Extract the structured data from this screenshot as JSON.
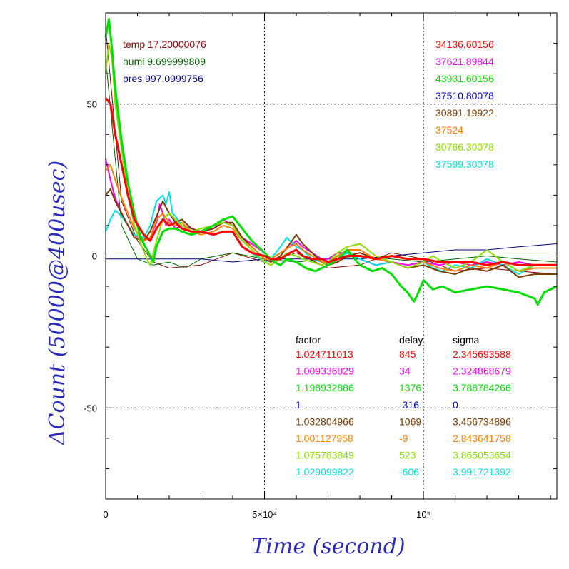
{
  "chart_data": {
    "type": "line",
    "title": "",
    "xlabel": "Time (second)",
    "ylabel": "ΔCount (50000@400usec)",
    "xlim": [
      0,
      142000
    ],
    "ylim": [
      -80,
      80
    ],
    "grid": "dotted at x=50000, x=100000 and y=50, y=0, y=-50",
    "x_ticks": [
      {
        "value": 0,
        "label": "0"
      },
      {
        "value": 50000,
        "label": "5×10⁴"
      },
      {
        "value": 100000,
        "label": "10⁵"
      }
    ],
    "y_ticks": [
      {
        "value": 50,
        "label": "50"
      },
      {
        "value": 0,
        "label": "0"
      },
      {
        "value": -50,
        "label": "-50"
      }
    ],
    "environment": [
      {
        "label": "temp",
        "value": "17.20000076",
        "color": "#8b0000"
      },
      {
        "label": "humi",
        "value": "9.699999809",
        "color": "#006400"
      },
      {
        "label": "pres",
        "value": "997.0999756",
        "color": "#000080"
      }
    ],
    "counts": [
      {
        "value": "34136.60156",
        "color": "#ff0000"
      },
      {
        "value": "37621.89844",
        "color": "#ff00ff"
      },
      {
        "value": "43931.60156",
        "color": "#00dd00"
      },
      {
        "value": "37510.80078",
        "color": "#0000cc"
      },
      {
        "value": "30891.19922",
        "color": "#7a3c00"
      },
      {
        "value": "37524",
        "color": "#ff8000"
      },
      {
        "value": "30766.30078",
        "color": "#88e000"
      },
      {
        "value": "37599.30078",
        "color": "#00e0e0"
      }
    ],
    "table_headers": {
      "factor": "factor",
      "delay": "delay",
      "sigma": "sigma"
    },
    "table": [
      {
        "factor": "1.024711013",
        "delay": "845",
        "sigma": "2.345693588",
        "color": "#ff0000"
      },
      {
        "factor": "1.009336829",
        "delay": "34",
        "sigma": "2.324868679",
        "color": "#ff00ff"
      },
      {
        "factor": "1.198932886",
        "delay": "1376",
        "sigma": "3.788784266",
        "color": "#00dd00"
      },
      {
        "factor": "1",
        "delay": "-316",
        "sigma": "0",
        "color": "#0000cc"
      },
      {
        "factor": "1.032804966",
        "delay": "1069",
        "sigma": "3.456734896",
        "color": "#7a3c00"
      },
      {
        "factor": "1.001127958",
        "delay": "-9",
        "sigma": "2.843641758",
        "color": "#ff8000"
      },
      {
        "factor": "1.075783849",
        "delay": "523",
        "sigma": "3.865053654",
        "color": "#88e000"
      },
      {
        "factor": "1.029099822",
        "delay": "-606",
        "sigma": "3.991721392",
        "color": "#00e0e0"
      }
    ],
    "env_series": [
      {
        "color": "#8b0000",
        "x": [
          0,
          5000,
          10000,
          15000,
          20000,
          30000,
          40000,
          50000,
          60000,
          70000,
          80000,
          90000,
          100000,
          110000,
          120000,
          130000,
          142000
        ],
        "y": [
          75,
          18,
          5,
          -2,
          -4,
          -3,
          1,
          -2,
          1,
          -4,
          -3,
          1,
          -1,
          -5,
          -4,
          -5,
          -6
        ]
      },
      {
        "color": "#006400",
        "x": [
          0,
          5000,
          10000,
          15000,
          20000,
          25000,
          30000,
          40000,
          50000,
          60000,
          70000,
          80000,
          90000,
          100000,
          110000,
          120000,
          130000,
          142000
        ],
        "y": [
          65,
          10,
          -1,
          -3,
          -2,
          -4,
          -1,
          1,
          -1,
          -2,
          -1,
          0,
          -1,
          -2,
          -1,
          0,
          -1,
          -2
        ]
      },
      {
        "color": "#000080",
        "x": [
          0,
          10000,
          20000,
          30000,
          40000,
          50000,
          60000,
          70000,
          80000,
          90000,
          100000,
          110000,
          120000,
          130000,
          142000
        ],
        "y": [
          -1,
          -1,
          -1,
          -1,
          -2,
          -1,
          -1,
          -1,
          -1,
          0,
          1,
          2,
          2,
          3,
          4
        ]
      }
    ],
    "series": [
      {
        "color": "#ff00ff",
        "width": 2,
        "x": [
          0,
          1500,
          3000,
          5000,
          7000,
          9000,
          12000,
          14000,
          16000,
          17000,
          18000,
          19000,
          20000,
          22000,
          24000,
          27000,
          30000,
          34000,
          37000,
          40000,
          43000,
          46000,
          50000,
          52000,
          55000,
          58000,
          60000,
          62000,
          65000,
          68000,
          70000,
          73000,
          76000,
          80000,
          85000,
          90000,
          95000,
          100000,
          105000,
          110000,
          115000,
          120000,
          125000,
          130000,
          135000,
          142000
        ],
        "y": [
          32,
          25,
          19,
          14,
          10,
          7,
          5,
          6,
          11,
          17,
          14,
          10,
          12,
          9,
          10,
          9,
          8,
          9,
          12,
          10,
          6,
          4,
          1,
          -1,
          1,
          3,
          5,
          3,
          1,
          -1,
          -1,
          1,
          1,
          -1,
          -3,
          -2,
          -3,
          -2,
          -3,
          -2,
          -3,
          -2,
          -3,
          -2,
          -3,
          -3
        ]
      },
      {
        "color": "#00e0e0",
        "width": 2,
        "x": [
          0,
          1500,
          3000,
          5000,
          7000,
          9000,
          12000,
          14000,
          16000,
          18000,
          19000,
          20000,
          21000,
          22000,
          24000,
          27000,
          30000,
          34000,
          37000,
          40000,
          43000,
          46000,
          50000,
          52000,
          55000,
          57000,
          60000,
          62000,
          65000,
          68000,
          70000,
          73000,
          76000,
          80000,
          85000,
          90000,
          95000,
          100000,
          103000,
          106000,
          110000,
          115000,
          120000,
          125000,
          130000,
          135000,
          142000
        ],
        "y": [
          8,
          12,
          15,
          13,
          10,
          7,
          6,
          10,
          18,
          20,
          17,
          21,
          14,
          13,
          10,
          8,
          8,
          7,
          8,
          8,
          3,
          1,
          -2,
          -1,
          3,
          6,
          3,
          2,
          -1,
          -2,
          -3,
          -1,
          1,
          -1,
          -3,
          -2,
          -4,
          -2,
          -4,
          -5,
          -3,
          -4,
          -1,
          -3,
          -6,
          -3,
          -3
        ]
      },
      {
        "color": "#7a3c00",
        "width": 2,
        "x": [
          0,
          1500,
          3000,
          5000,
          7000,
          9000,
          12000,
          14000,
          16000,
          18000,
          20000,
          22000,
          24000,
          27000,
          30000,
          34000,
          37000,
          40000,
          43000,
          46000,
          50000,
          52000,
          55000,
          58000,
          60000,
          62000,
          65000,
          68000,
          70000,
          73000,
          76000,
          80000,
          85000,
          90000,
          95000,
          100000,
          105000,
          110000,
          115000,
          120000,
          125000,
          130000,
          135000,
          142000
        ],
        "y": [
          20,
          22,
          18,
          14,
          10,
          6,
          5,
          8,
          13,
          18,
          14,
          11,
          12,
          9,
          8,
          9,
          11,
          11,
          6,
          3,
          -1,
          -2,
          0,
          4,
          7,
          4,
          1,
          -2,
          -3,
          -2,
          0,
          1,
          -1,
          -2,
          -4,
          -3,
          -5,
          -6,
          -4,
          -5,
          -3,
          -7,
          -6,
          -6
        ]
      },
      {
        "color": "#ff8000",
        "width": 2,
        "x": [
          0,
          1500,
          3000,
          5000,
          7000,
          9000,
          12000,
          14000,
          16000,
          18000,
          20000,
          22000,
          24000,
          27000,
          30000,
          34000,
          37000,
          40000,
          43000,
          46000,
          50000,
          52000,
          55000,
          58000,
          60000,
          62000,
          65000,
          68000,
          70000,
          73000,
          76000,
          80000,
          85000,
          90000,
          95000,
          100000,
          105000,
          110000,
          115000,
          120000,
          125000,
          130000,
          135000,
          142000
        ],
        "y": [
          28,
          30,
          25,
          19,
          14,
          9,
          5,
          6,
          12,
          14,
          11,
          10,
          11,
          8,
          7,
          8,
          10,
          9,
          5,
          3,
          -1,
          -1,
          1,
          3,
          4,
          2,
          0,
          -2,
          -2,
          0,
          2,
          2,
          -1,
          -2,
          -4,
          -2,
          -4,
          -5,
          -3,
          -4,
          -2,
          -5,
          -4,
          -4
        ]
      },
      {
        "color": "#88e000",
        "width": 2,
        "x": [
          0,
          1000,
          2000,
          3000,
          5000,
          7000,
          9000,
          11000,
          13000,
          14000,
          16000,
          18000,
          20000,
          22000,
          24000,
          27000,
          30000,
          34000,
          37000,
          40000,
          43000,
          46000,
          50000,
          52000,
          55000,
          57000,
          60000,
          62000,
          65000,
          68000,
          70000,
          73000,
          76000,
          80000,
          85000,
          90000,
          95000,
          100000,
          103000,
          106000,
          110000,
          115000,
          120000,
          125000,
          130000,
          135000,
          142000
        ],
        "y": [
          60,
          70,
          65,
          50,
          35,
          20,
          10,
          4,
          -1,
          -3,
          5,
          12,
          14,
          12,
          10,
          8,
          9,
          10,
          11,
          10,
          5,
          2,
          -2,
          -3,
          -1,
          1,
          0,
          -1,
          -2,
          -3,
          -2,
          1,
          3,
          4,
          0,
          -2,
          -4,
          -2,
          0,
          -2,
          -4,
          -2,
          2,
          -2,
          -5,
          -3,
          -3
        ]
      },
      {
        "color": "#00dd00",
        "width": 3,
        "x": [
          0,
          1000,
          2000,
          3000,
          5000,
          7000,
          9000,
          11000,
          13000,
          15000,
          16000,
          18000,
          20000,
          22000,
          24000,
          27000,
          30000,
          34000,
          37000,
          40000,
          43000,
          46000,
          50000,
          53000,
          55000,
          57000,
          60000,
          63000,
          66000,
          68000,
          70000,
          73000,
          76000,
          80000,
          84000,
          87000,
          90000,
          93000,
          95000,
          97000,
          98000,
          100000,
          103000,
          106000,
          110000,
          115000,
          120000,
          125000,
          130000,
          135000,
          136000,
          138000,
          142000
        ],
        "y": [
          72,
          78,
          68,
          55,
          38,
          24,
          14,
          6,
          2,
          -2,
          3,
          8,
          9,
          9,
          8,
          7,
          8,
          10,
          12,
          13,
          9,
          5,
          1,
          -2,
          -3,
          -1,
          -2,
          -4,
          -5,
          -4,
          -3,
          -1,
          2,
          -3,
          -5,
          -4,
          -6,
          -10,
          -12,
          -15,
          -13,
          -8,
          -11,
          -10,
          -12,
          -11,
          -10,
          -11,
          -12,
          -14,
          -16,
          -12,
          -10
        ]
      },
      {
        "color": "#ff0000",
        "width": 3,
        "x": [
          0,
          1500,
          3000,
          5000,
          7000,
          9000,
          12000,
          14000,
          16000,
          18000,
          20000,
          22000,
          24000,
          27000,
          30000,
          34000,
          37000,
          40000,
          43000,
          46000,
          50000,
          52000,
          55000,
          58000,
          60000,
          62000,
          65000,
          68000,
          70000,
          73000,
          76000,
          80000,
          85000,
          90000,
          95000,
          100000,
          105000,
          110000,
          115000,
          120000,
          125000,
          130000,
          135000,
          142000
        ],
        "y": [
          52,
          50,
          40,
          30,
          20,
          12,
          7,
          5,
          9,
          12,
          10,
          11,
          9,
          8,
          8,
          7,
          8,
          8,
          3,
          1,
          0,
          -1,
          -1,
          1,
          2,
          0,
          -1,
          -1,
          -2,
          -1,
          0,
          0,
          -1,
          0,
          -1,
          -1,
          -2,
          -2,
          -2,
          -3,
          -2,
          -3,
          -3,
          -3
        ]
      },
      {
        "color": "#0000cc",
        "width": 1,
        "x": [
          0,
          20000,
          40000,
          60000,
          80000,
          100000,
          120000,
          142000
        ],
        "y": [
          0,
          0,
          0,
          0,
          0,
          0,
          0,
          0
        ]
      }
    ]
  }
}
